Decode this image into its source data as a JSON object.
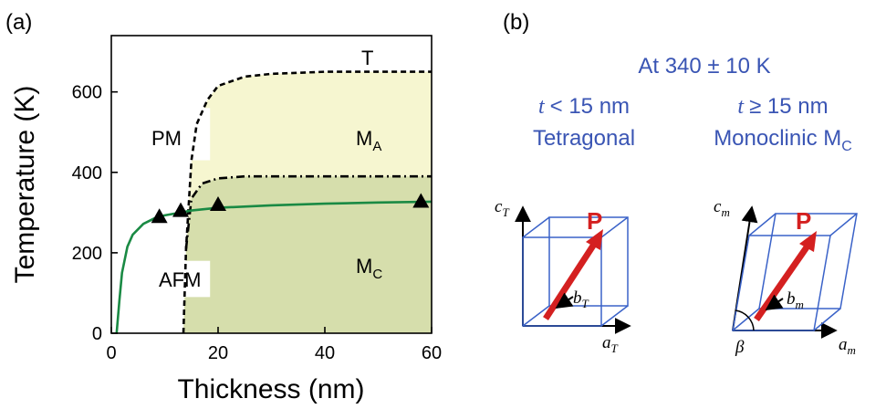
{
  "panel_a": {
    "label": "(a)",
    "xlabel": "Thickness (nm)",
    "ylabel": "Temperature (K)",
    "xticks": [
      "0",
      "20",
      "40",
      "60"
    ],
    "yticks": [
      "0",
      "200",
      "400",
      "600"
    ],
    "regions": {
      "T": "T",
      "PM": "PM",
      "MA_main": "M",
      "MA_sub": "A",
      "AFM": "AFM",
      "MC_main": "M",
      "MC_sub": "C"
    }
  },
  "panel_b": {
    "label": "(b)",
    "temperature": "At 340 ± 10 K",
    "left": {
      "condition_var": "t",
      "condition_rel": "< 15 nm",
      "phase": "Tetragonal",
      "axis_c": "c",
      "axis_c_sub": "T",
      "axis_a": "a",
      "axis_a_sub": "T",
      "axis_b": "b",
      "axis_b_sub": "T",
      "polarization": "P"
    },
    "right": {
      "condition_var": "t",
      "condition_rel": "≥ 15 nm",
      "phase_main": "Monoclinic M",
      "phase_sub": "C",
      "axis_c": "c",
      "axis_c_sub": "m",
      "axis_a": "a",
      "axis_a_sub": "m",
      "axis_b": "b",
      "axis_b_sub": "m",
      "angle": "β",
      "polarization": "P"
    }
  },
  "colors": {
    "ma_fill": "#f6f6d0",
    "mc_fill": "#d6deac",
    "afm_curve": "#1a8a44",
    "box_blue": "#3a62c8",
    "arrow_red": "#d42020",
    "text_blue": "#3a55b4"
  },
  "chart_data": {
    "type": "line",
    "xlim": [
      0,
      60
    ],
    "ylim": [
      0,
      740
    ],
    "series": [
      {
        "style": "dashed",
        "x": [
          13.5,
          14,
          15,
          16,
          18,
          20,
          25,
          30,
          40,
          60
        ],
        "y": [
          0,
          210,
          430,
          520,
          580,
          615,
          638,
          645,
          650,
          650
        ]
      },
      {
        "style": "dash-dot",
        "x": [
          14,
          15,
          17,
          20,
          25,
          30,
          40,
          60
        ],
        "y": [
          210,
          335,
          372,
          385,
          390,
          390,
          390,
          390
        ]
      },
      {
        "style": "solid",
        "x": [
          1,
          1.5,
          2,
          3,
          4,
          6,
          8,
          10,
          13,
          15,
          20,
          30,
          40,
          50,
          60
        ],
        "y": [
          0,
          80,
          150,
          215,
          245,
          272,
          285,
          293,
          300,
          305,
          312,
          318,
          322,
          325,
          327
        ]
      }
    ],
    "markers": {
      "x": [
        9,
        13,
        20,
        58
      ],
      "y": [
        290,
        305,
        320,
        328
      ]
    }
  }
}
